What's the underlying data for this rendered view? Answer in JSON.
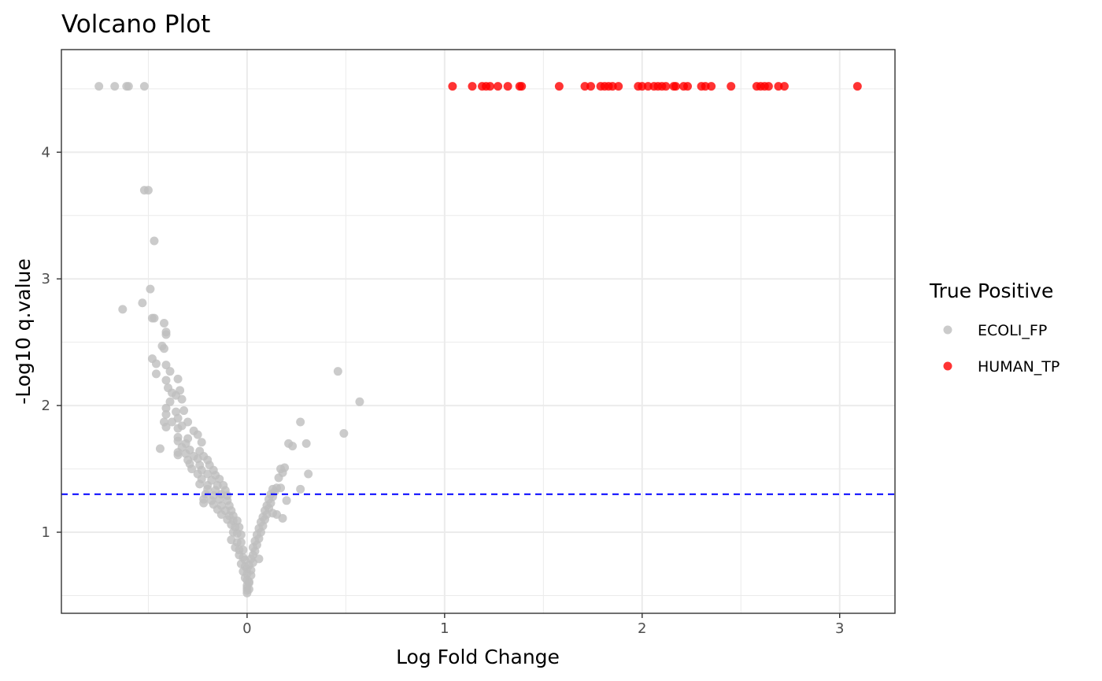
{
  "chart_data": {
    "type": "scatter",
    "title": "Volcano Plot",
    "xlabel": "Log Fold Change",
    "ylabel": "-Log10 q.value",
    "xlim": [
      -0.94,
      3.28
    ],
    "ylim": [
      0.36,
      4.81
    ],
    "x_ticks": [
      0,
      1,
      2,
      3
    ],
    "y_ticks": [
      1,
      2,
      3,
      4
    ],
    "x_tick_labels": [
      "0",
      "1",
      "2",
      "3"
    ],
    "y_tick_labels": [
      "1",
      "2",
      "3",
      "4"
    ],
    "grid": true,
    "threshold_line": {
      "y": 1.3,
      "color": "#0000ff",
      "style": "dashed"
    },
    "legend": {
      "title": "True Positive",
      "position": "right",
      "entries": [
        {
          "label": "ECOLI_FP",
          "color": "#bebebe"
        },
        {
          "label": "HUMAN_TP",
          "color": "#ff0000"
        }
      ]
    },
    "series": [
      {
        "name": "ECOLI_FP",
        "color": "#bebebe",
        "points": [
          [
            -0.75,
            4.52
          ],
          [
            -0.67,
            4.52
          ],
          [
            -0.61,
            4.52
          ],
          [
            -0.6,
            4.52
          ],
          [
            -0.52,
            4.52
          ],
          [
            -0.52,
            3.7
          ],
          [
            -0.5,
            3.7
          ],
          [
            -0.47,
            3.3
          ],
          [
            -0.49,
            2.92
          ],
          [
            -0.53,
            2.81
          ],
          [
            -0.63,
            2.76
          ],
          [
            -0.48,
            2.69
          ],
          [
            -0.47,
            2.69
          ],
          [
            -0.42,
            2.65
          ],
          [
            -0.41,
            2.58
          ],
          [
            -0.41,
            2.56
          ],
          [
            -0.43,
            2.47
          ],
          [
            -0.42,
            2.45
          ],
          [
            -0.48,
            2.37
          ],
          [
            -0.46,
            2.33
          ],
          [
            -0.41,
            2.32
          ],
          [
            -0.46,
            2.25
          ],
          [
            -0.39,
            2.27
          ],
          [
            -0.35,
            2.21
          ],
          [
            -0.41,
            2.2
          ],
          [
            -0.4,
            2.14
          ],
          [
            -0.38,
            2.1
          ],
          [
            -0.36,
            2.08
          ],
          [
            -0.34,
            2.12
          ],
          [
            -0.33,
            2.05
          ],
          [
            -0.39,
            2.03
          ],
          [
            -0.41,
            1.98
          ],
          [
            -0.36,
            1.95
          ],
          [
            -0.32,
            1.96
          ],
          [
            -0.41,
            1.93
          ],
          [
            -0.35,
            1.9
          ],
          [
            -0.42,
            1.87
          ],
          [
            -0.38,
            1.87
          ],
          [
            -0.3,
            1.87
          ],
          [
            -0.41,
            1.83
          ],
          [
            -0.35,
            1.82
          ],
          [
            -0.33,
            1.84
          ],
          [
            -0.27,
            1.8
          ],
          [
            -0.35,
            1.75
          ],
          [
            -0.3,
            1.74
          ],
          [
            -0.25,
            1.77
          ],
          [
            -0.35,
            1.72
          ],
          [
            -0.31,
            1.7
          ],
          [
            -0.23,
            1.71
          ],
          [
            -0.33,
            1.67
          ],
          [
            -0.44,
            1.66
          ],
          [
            -0.29,
            1.65
          ],
          [
            -0.24,
            1.64
          ],
          [
            -0.35,
            1.63
          ],
          [
            -0.31,
            1.62
          ],
          [
            -0.35,
            1.61
          ],
          [
            -0.27,
            1.6
          ],
          [
            -0.22,
            1.6
          ],
          [
            -0.3,
            1.57
          ],
          [
            -0.25,
            1.58
          ],
          [
            -0.2,
            1.57
          ],
          [
            -0.29,
            1.54
          ],
          [
            -0.24,
            1.53
          ],
          [
            -0.19,
            1.53
          ],
          [
            -0.28,
            1.5
          ],
          [
            -0.23,
            1.49
          ],
          [
            -0.17,
            1.49
          ],
          [
            -0.25,
            1.46
          ],
          [
            -0.2,
            1.46
          ],
          [
            -0.16,
            1.45
          ],
          [
            -0.23,
            1.42
          ],
          [
            -0.18,
            1.41
          ],
          [
            -0.14,
            1.42
          ],
          [
            -0.24,
            1.38
          ],
          [
            -0.2,
            1.37
          ],
          [
            -0.15,
            1.37
          ],
          [
            -0.12,
            1.37
          ],
          [
            -0.2,
            1.34
          ],
          [
            -0.16,
            1.33
          ],
          [
            -0.11,
            1.33
          ],
          [
            -0.21,
            1.3
          ],
          [
            -0.17,
            1.29
          ],
          [
            -0.13,
            1.3
          ],
          [
            -0.1,
            1.29
          ],
          [
            -0.22,
            1.26
          ],
          [
            -0.18,
            1.25
          ],
          [
            -0.14,
            1.26
          ],
          [
            -0.1,
            1.25
          ],
          [
            -0.22,
            1.23
          ],
          [
            -0.17,
            1.22
          ],
          [
            -0.13,
            1.21
          ],
          [
            -0.09,
            1.21
          ],
          [
            -0.15,
            1.18
          ],
          [
            -0.11,
            1.17
          ],
          [
            -0.08,
            1.17
          ],
          [
            -0.13,
            1.14
          ],
          [
            -0.09,
            1.13
          ],
          [
            -0.07,
            1.13
          ],
          [
            -0.1,
            1.1
          ],
          [
            -0.07,
            1.09
          ],
          [
            -0.05,
            1.09
          ],
          [
            -0.08,
            1.06
          ],
          [
            -0.06,
            1.04
          ],
          [
            -0.04,
            1.04
          ],
          [
            -0.07,
            1.0
          ],
          [
            -0.05,
            0.99
          ],
          [
            -0.03,
            0.98
          ],
          [
            -0.08,
            0.94
          ],
          [
            -0.05,
            0.92
          ],
          [
            -0.03,
            0.92
          ],
          [
            -0.06,
            0.88
          ],
          [
            -0.04,
            0.86
          ],
          [
            -0.02,
            0.86
          ],
          [
            -0.04,
            0.82
          ],
          [
            -0.02,
            0.8
          ],
          [
            -0.01,
            0.78
          ],
          [
            -0.03,
            0.75
          ],
          [
            -0.01,
            0.73
          ],
          [
            0.0,
            0.71
          ],
          [
            -0.02,
            0.69
          ],
          [
            0.0,
            0.67
          ],
          [
            -0.01,
            0.64
          ],
          [
            0.0,
            0.62
          ],
          [
            0.01,
            0.6
          ],
          [
            0.0,
            0.58
          ],
          [
            0.0,
            0.56
          ],
          [
            0.0,
            0.54
          ],
          [
            0.0,
            0.52
          ],
          [
            0.01,
            0.55
          ],
          [
            0.01,
            0.61
          ],
          [
            0.02,
            0.66
          ],
          [
            0.02,
            0.7
          ],
          [
            0.01,
            0.74
          ],
          [
            0.03,
            0.76
          ],
          [
            0.02,
            0.79
          ],
          [
            0.03,
            0.82
          ],
          [
            0.04,
            0.85
          ],
          [
            0.03,
            0.88
          ],
          [
            0.05,
            0.9
          ],
          [
            0.04,
            0.93
          ],
          [
            0.06,
            0.95
          ],
          [
            0.05,
            0.98
          ],
          [
            0.07,
            1.0
          ],
          [
            0.06,
            1.03
          ],
          [
            0.08,
            1.05
          ],
          [
            0.07,
            1.08
          ],
          [
            0.09,
            1.1
          ],
          [
            0.08,
            1.12
          ],
          [
            0.1,
            1.14
          ],
          [
            0.09,
            1.17
          ],
          [
            0.11,
            1.19
          ],
          [
            0.1,
            1.21
          ],
          [
            0.12,
            1.23
          ],
          [
            0.11,
            1.26
          ],
          [
            0.13,
            1.28
          ],
          [
            0.12,
            1.3
          ],
          [
            0.14,
            1.32
          ],
          [
            0.13,
            1.34
          ],
          [
            0.15,
            1.35
          ],
          [
            0.06,
            0.79
          ],
          [
            0.13,
            1.15
          ],
          [
            0.15,
            1.14
          ],
          [
            0.18,
            1.11
          ],
          [
            0.2,
            1.25
          ],
          [
            0.17,
            1.35
          ],
          [
            0.16,
            1.43
          ],
          [
            0.18,
            1.47
          ],
          [
            0.17,
            1.5
          ],
          [
            0.19,
            1.51
          ],
          [
            0.23,
            1.68
          ],
          [
            0.21,
            1.7
          ],
          [
            0.27,
            1.34
          ],
          [
            0.31,
            1.46
          ],
          [
            0.3,
            1.7
          ],
          [
            0.27,
            1.87
          ],
          [
            0.46,
            2.27
          ],
          [
            0.49,
            1.78
          ],
          [
            0.57,
            2.03
          ]
        ]
      },
      {
        "name": "HUMAN_TP",
        "color": "#ff0000",
        "points": [
          [
            1.04,
            4.52
          ],
          [
            1.14,
            4.52
          ],
          [
            1.19,
            4.52
          ],
          [
            1.21,
            4.52
          ],
          [
            1.23,
            4.52
          ],
          [
            1.27,
            4.52
          ],
          [
            1.32,
            4.52
          ],
          [
            1.38,
            4.52
          ],
          [
            1.39,
            4.52
          ],
          [
            1.58,
            4.52
          ],
          [
            1.71,
            4.52
          ],
          [
            1.74,
            4.52
          ],
          [
            1.79,
            4.52
          ],
          [
            1.81,
            4.52
          ],
          [
            1.83,
            4.52
          ],
          [
            1.85,
            4.52
          ],
          [
            1.88,
            4.52
          ],
          [
            1.98,
            4.52
          ],
          [
            2.0,
            4.52
          ],
          [
            2.03,
            4.52
          ],
          [
            2.06,
            4.52
          ],
          [
            2.08,
            4.52
          ],
          [
            2.1,
            4.52
          ],
          [
            2.12,
            4.52
          ],
          [
            2.16,
            4.52
          ],
          [
            2.17,
            4.52
          ],
          [
            2.21,
            4.52
          ],
          [
            2.23,
            4.52
          ],
          [
            2.3,
            4.52
          ],
          [
            2.32,
            4.52
          ],
          [
            2.35,
            4.52
          ],
          [
            2.45,
            4.52
          ],
          [
            2.58,
            4.52
          ],
          [
            2.6,
            4.52
          ],
          [
            2.62,
            4.52
          ],
          [
            2.64,
            4.52
          ],
          [
            2.69,
            4.52
          ],
          [
            2.72,
            4.52
          ],
          [
            3.09,
            4.52
          ]
        ]
      }
    ]
  }
}
